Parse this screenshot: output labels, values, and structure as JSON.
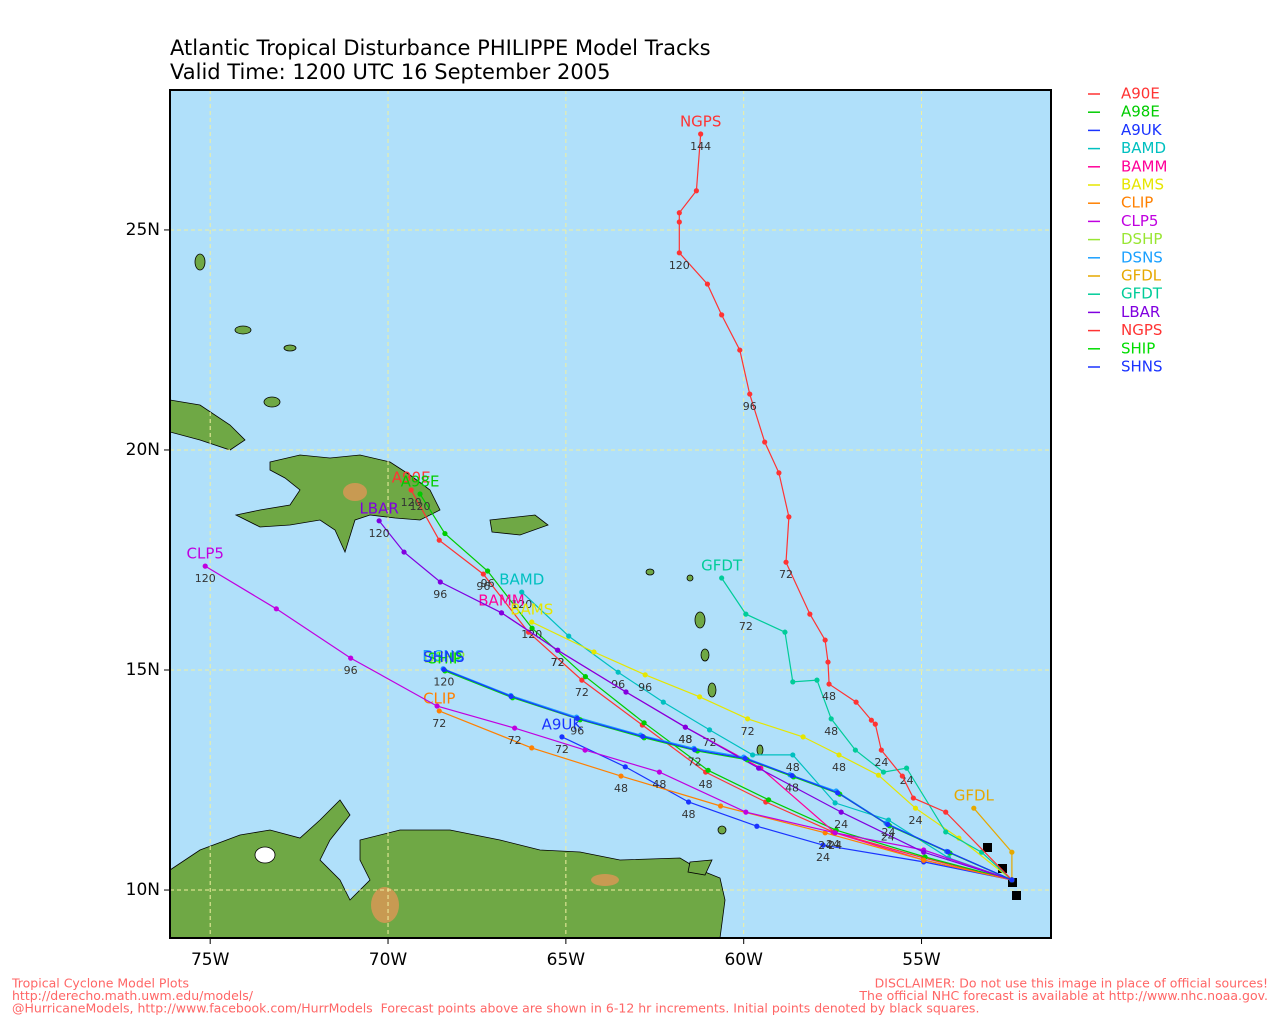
{
  "chart_data": {
    "type": "track",
    "title": "Atlantic Tropical Disturbance PHILIPPE Model Tracks",
    "subtitle": "Valid Time: 1200 UTC 16 September 2005",
    "xlim": [
      -76.13,
      -51.36
    ],
    "ylim": [
      8.91,
      28.18
    ],
    "xticks": [
      {
        "value": -75,
        "label": "75W"
      },
      {
        "value": -70,
        "label": "70W"
      },
      {
        "value": -65,
        "label": "65W"
      },
      {
        "value": -60,
        "label": "60W"
      },
      {
        "value": -55,
        "label": "55W"
      }
    ],
    "yticks": [
      {
        "value": 10,
        "label": "10N"
      },
      {
        "value": 15,
        "label": "15N"
      },
      {
        "value": 20,
        "label": "20N"
      },
      {
        "value": 25,
        "label": "25N"
      }
    ],
    "grid": true,
    "legend": "right",
    "footer_left": [
      "Tropical Cyclone Model Plots",
      "http://derecho.math.uwm.edu/models/",
      "@HurricaneModels, http://www.facebook.com/HurrModels  Forecast points above are shown in 6-12 hr increments. Initial points denoted by black squares."
    ],
    "footer_right": [
      "DISCLAIMER: Do not use this image in place of official sources!",
      "The official NHC forecast is available at http://www.nhc.noaa.gov."
    ],
    "series": [
      {
        "name": "A90E",
        "color": "#ff3333",
        "lon": [
          -52.46,
          -54.94,
          -57.49,
          -59.38,
          -61.07,
          -62.85,
          -64.55,
          -66.05,
          -67.32,
          -68.56,
          -69.35
        ],
        "lat": [
          10.23,
          10.73,
          11.32,
          12.0,
          12.68,
          13.75,
          14.77,
          15.86,
          17.18,
          17.95,
          19.09
        ],
        "hours": [
          null,
          null,
          24,
          null,
          48,
          null,
          72,
          null,
          96,
          null,
          120
        ]
      },
      {
        "name": "A98E",
        "color": "#00cc00",
        "lon": [
          -52.46,
          -54.9,
          -57.4,
          -59.3,
          -61.0,
          -62.8,
          -64.45,
          -65.95,
          -67.2,
          -68.4,
          -69.1
        ],
        "lat": [
          10.23,
          10.75,
          11.36,
          12.05,
          12.72,
          13.8,
          14.85,
          15.95,
          17.25,
          18.1,
          19.0
        ],
        "hours": [
          null,
          null,
          null,
          null,
          null,
          null,
          null,
          null,
          96,
          null,
          120
        ]
      },
      {
        "name": "A9UK",
        "color": "#1a33ff",
        "lon": [
          -52.46,
          -54.94,
          -57.77,
          -59.63,
          -61.55,
          -63.33,
          -65.11
        ],
        "lat": [
          10.23,
          10.64,
          11.02,
          11.45,
          12.0,
          12.8,
          13.48
        ],
        "hours": [
          null,
          null,
          24,
          null,
          48,
          null,
          72
        ]
      },
      {
        "name": "BAMD",
        "color": "#00c0c0",
        "lon": [
          -52.46,
          -54.24,
          -55.93,
          -57.43,
          -58.62,
          -59.75,
          -60.96,
          -62.26,
          -63.53,
          -64.92,
          -66.24
        ],
        "lat": [
          10.23,
          10.73,
          11.59,
          11.98,
          13.07,
          13.07,
          13.64,
          14.27,
          14.95,
          15.77,
          16.77
        ],
        "hours": [
          null,
          null,
          24,
          null,
          48,
          null,
          72,
          null,
          96,
          null,
          120
        ]
      },
      {
        "name": "BAMM",
        "color": "#ff0099",
        "lon": [
          -52.46,
          -54.94,
          -57.43,
          -59.52,
          -61.64,
          -63.31,
          -65.23,
          -66.81
        ],
        "lat": [
          10.23,
          10.68,
          11.3,
          12.77,
          13.7,
          14.5,
          15.45,
          16.3
        ],
        "hours": [
          null,
          null,
          null,
          null,
          48,
          null,
          72,
          null
        ]
      },
      {
        "name": "BAMS",
        "color": "#e6e600",
        "lon": [
          -52.46,
          -53.95,
          -55.17,
          -56.21,
          -57.32,
          -58.33,
          -59.89,
          -61.24,
          -62.77,
          -64.21,
          -65.96
        ],
        "lat": [
          10.23,
          11.18,
          11.86,
          12.61,
          13.07,
          13.48,
          13.89,
          14.39,
          14.89,
          15.41,
          16.09
        ],
        "hours": [
          null,
          null,
          24,
          null,
          48,
          null,
          72,
          null,
          96,
          null,
          120
        ]
      },
      {
        "name": "CLIP",
        "color": "#ff8000",
        "lon": [
          -52.46,
          -54.94,
          -57.71,
          -60.65,
          -63.45,
          -65.96,
          -68.56
        ],
        "lat": [
          10.23,
          10.68,
          11.3,
          11.91,
          12.59,
          13.23,
          14.07
        ],
        "hours": [
          null,
          null,
          24,
          null,
          48,
          null,
          72
        ]
      },
      {
        "name": "CLP5",
        "color": "#c000e0",
        "lon": [
          -52.46,
          -54.94,
          -57.43,
          -59.94,
          -62.37,
          -64.46,
          -66.44,
          -68.62,
          -71.05,
          -73.14,
          -75.14
        ],
        "lat": [
          10.23,
          10.91,
          11.3,
          11.77,
          12.68,
          13.18,
          13.68,
          14.18,
          15.27,
          16.39,
          17.36
        ],
        "hours": [
          null,
          null,
          24,
          null,
          48,
          null,
          72,
          null,
          96,
          null,
          120
        ]
      },
      {
        "name": "DSHP",
        "color": "#99e633",
        "lon": [
          -52.46,
          -54.24,
          -55.93,
          -57.34,
          -58.62,
          -59.94,
          -61.36,
          -62.82,
          -64.66,
          -66.53,
          -68.42
        ],
        "lat": [
          10.23,
          10.86,
          11.48,
          12.2,
          12.59,
          12.98,
          13.18,
          13.48,
          13.89,
          14.39,
          15.0
        ],
        "hours": [
          null,
          null,
          null,
          null,
          null,
          null,
          null,
          null,
          null,
          null,
          null
        ]
      },
      {
        "name": "DSNS",
        "color": "#1aa0ff",
        "lon": [
          -52.46,
          -54.3,
          -56.0,
          -57.4,
          -58.7,
          -60.0,
          -61.4,
          -62.9,
          -64.7,
          -66.55,
          -68.45
        ],
        "lat": [
          10.23,
          10.88,
          11.52,
          12.25,
          12.62,
          13.02,
          13.22,
          13.52,
          13.93,
          14.42,
          15.03
        ],
        "hours": [
          null,
          null,
          null,
          null,
          null,
          null,
          null,
          null,
          null,
          null,
          null
        ]
      },
      {
        "name": "GFDL",
        "color": "#e6a800",
        "lon": [
          -52.46,
          -52.46,
          -53.53
        ],
        "lat": [
          10.23,
          10.86,
          11.86
        ],
        "hours": [
          null,
          null,
          null
        ]
      },
      {
        "name": "GFDT",
        "color": "#00cc99",
        "lon": [
          -52.46,
          -53.31,
          -54.32,
          -55.42,
          -56.07,
          -56.86,
          -57.54,
          -57.94,
          -58.62,
          -58.84,
          -59.94,
          -60.62
        ],
        "lat": [
          10.23,
          10.86,
          11.32,
          12.77,
          12.68,
          13.18,
          13.89,
          14.77,
          14.73,
          15.86,
          16.27,
          17.09
        ],
        "hours": [
          null,
          null,
          null,
          24,
          null,
          null,
          48,
          null,
          null,
          null,
          72,
          null
        ]
      },
      {
        "name": "LBAR",
        "color": "#8000e0",
        "lon": [
          -52.46,
          -54.94,
          -57.26,
          -59.58,
          -61.64,
          -63.31,
          -65.23,
          -66.81,
          -68.53,
          -69.55,
          -70.25
        ],
        "lat": [
          10.23,
          10.86,
          11.77,
          12.77,
          13.7,
          14.5,
          15.45,
          16.3,
          17.0,
          17.68,
          18.39
        ],
        "hours": [
          null,
          null,
          24,
          null,
          48,
          null,
          72,
          null,
          96,
          null,
          120
        ]
      },
      {
        "name": "NGPS",
        "color": "#ff3333",
        "lon": [
          -52.46,
          -54.32,
          -55.23,
          -55.54,
          -56.13,
          -56.3,
          -56.41,
          -56.84,
          -57.6,
          -57.63,
          -57.71,
          -58.14,
          -58.81,
          -58.73,
          -59.01,
          -59.41,
          -59.83,
          -60.11,
          -60.62,
          -61.02,
          -61.81,
          -61.81,
          -61.81,
          -61.33,
          -61.21
        ],
        "lat": [
          10.23,
          11.77,
          12.09,
          12.59,
          13.18,
          13.77,
          13.86,
          14.27,
          14.68,
          15.18,
          15.68,
          16.27,
          17.45,
          18.48,
          19.48,
          20.18,
          21.27,
          22.27,
          23.07,
          23.77,
          24.48,
          25.18,
          25.39,
          25.89,
          27.18
        ],
        "hours": [
          null,
          null,
          null,
          null,
          24,
          null,
          null,
          null,
          48,
          null,
          null,
          null,
          72,
          null,
          null,
          null,
          96,
          null,
          null,
          null,
          120,
          null,
          null,
          null,
          144
        ]
      },
      {
        "name": "SHIP",
        "color": "#00dd00",
        "lon": [
          -52.46,
          -54.2,
          -55.9,
          -57.3,
          -58.6,
          -59.9,
          -61.3,
          -62.8,
          -64.6,
          -66.5,
          -68.4
        ],
        "lat": [
          10.23,
          10.84,
          11.46,
          12.18,
          12.57,
          12.96,
          13.16,
          13.46,
          13.87,
          14.37,
          14.98
        ],
        "hours": [
          null,
          null,
          null,
          null,
          null,
          null,
          null,
          null,
          null,
          null,
          null
        ]
      },
      {
        "name": "SHNS",
        "color": "#1a33ff",
        "lon": [
          -52.46,
          -54.26,
          -55.95,
          -57.36,
          -58.64,
          -59.96,
          -61.38,
          -62.84,
          -64.68,
          -66.54,
          -68.43
        ],
        "lat": [
          10.23,
          10.87,
          11.49,
          12.21,
          12.6,
          12.99,
          13.19,
          13.49,
          13.9,
          14.4,
          15.01
        ],
        "hours": [
          null,
          null,
          24,
          null,
          48,
          null,
          72,
          null,
          96,
          null,
          120
        ]
      }
    ]
  }
}
